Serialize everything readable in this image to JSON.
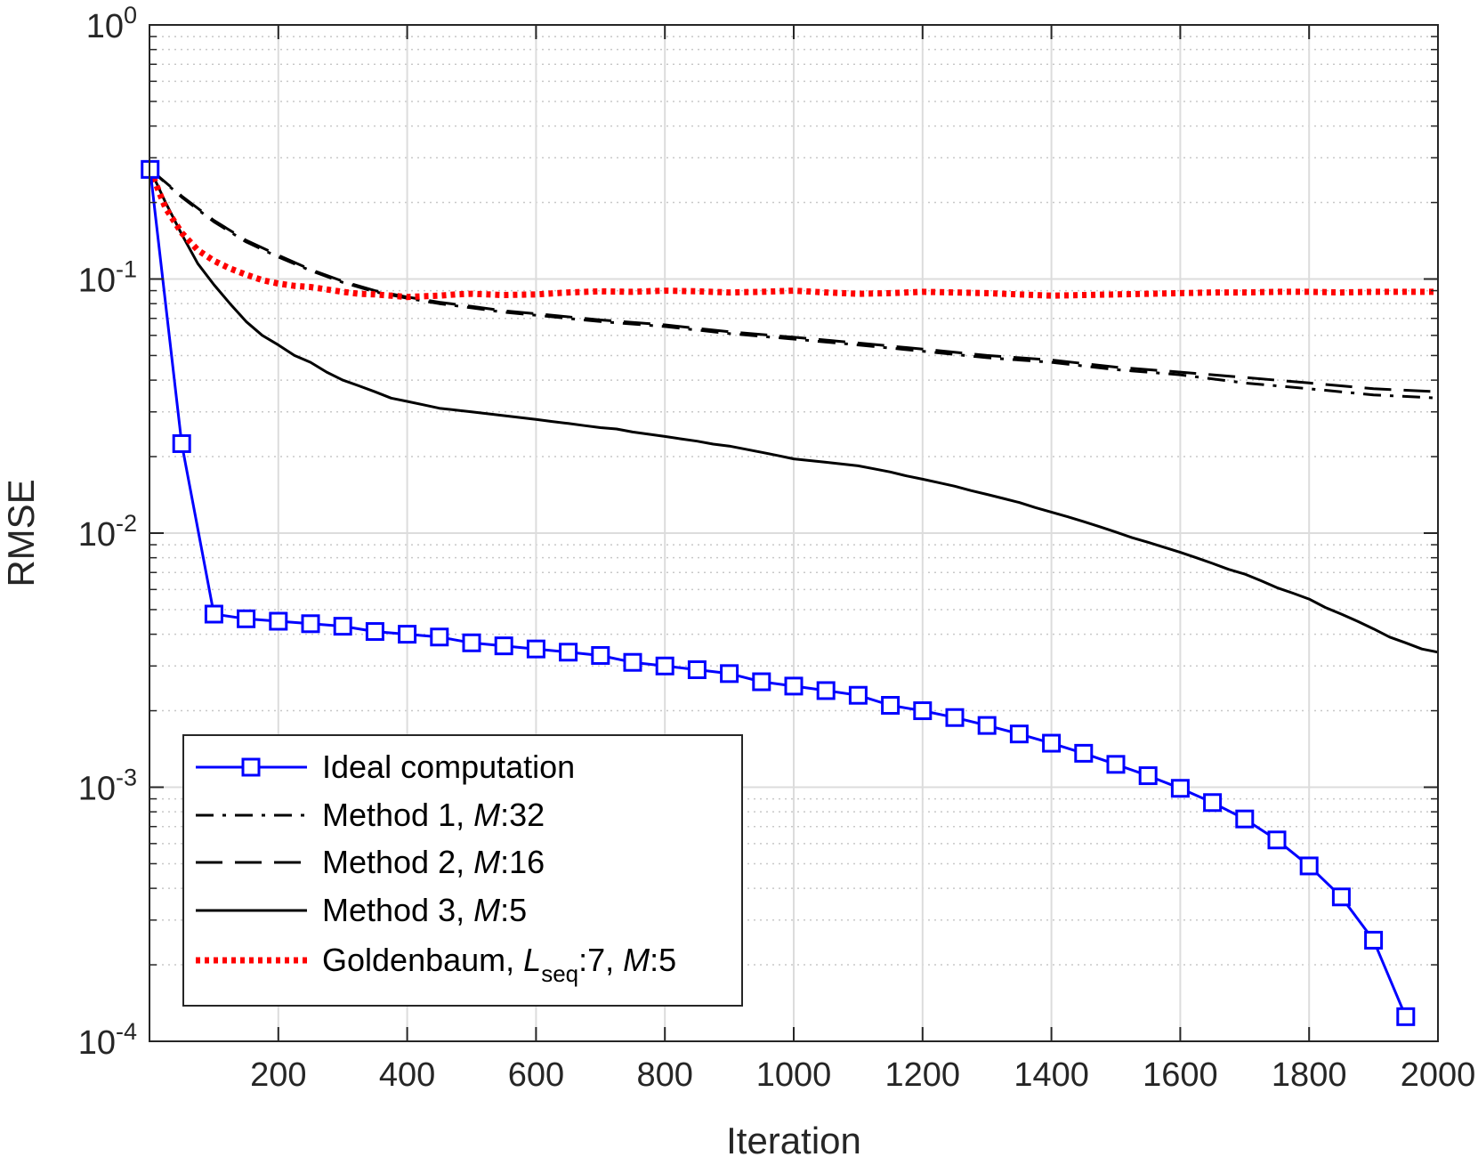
{
  "chart_data": {
    "type": "line",
    "xlabel": "Iteration",
    "ylabel": "RMSE",
    "xlim": [
      0,
      2000
    ],
    "ylim": [
      0.0001,
      1
    ],
    "yscale": "log",
    "grid": true,
    "minor_grid": true,
    "legend_location": "bottom-left",
    "x_ticks": [
      200,
      400,
      600,
      800,
      1000,
      1200,
      1400,
      1600,
      1800,
      2000
    ],
    "x_tick_labels": [
      "200",
      "400",
      "600",
      "800",
      "1000",
      "1200",
      "1400",
      "1600",
      "1800",
      "2000"
    ],
    "y_ticks": [
      {
        "value": 1,
        "base": "10",
        "exp": "0"
      },
      {
        "value": 0.1,
        "base": "10",
        "exp": "-1"
      },
      {
        "value": 0.01,
        "base": "10",
        "exp": "-2"
      },
      {
        "value": 0.001,
        "base": "10",
        "exp": "-3"
      },
      {
        "value": 0.0001,
        "base": "10",
        "exp": "-4"
      }
    ],
    "series": [
      {
        "name": "Ideal computation",
        "color": "#0000ff",
        "style": "solid",
        "marker": "square",
        "x": [
          1,
          50,
          100,
          150,
          200,
          250,
          300,
          350,
          400,
          450,
          500,
          550,
          600,
          650,
          700,
          750,
          800,
          850,
          900,
          950,
          1000,
          1050,
          1100,
          1150,
          1200,
          1250,
          1300,
          1350,
          1400,
          1450,
          1500,
          1550,
          1600,
          1650,
          1700,
          1750,
          1800,
          1850,
          1900,
          1950
        ],
        "y": [
          0.27,
          0.0225,
          0.0048,
          0.0046,
          0.0045,
          0.0044,
          0.0043,
          0.0041,
          0.004,
          0.0039,
          0.0037,
          0.0036,
          0.0035,
          0.0034,
          0.0033,
          0.0031,
          0.003,
          0.0029,
          0.0028,
          0.0026,
          0.0025,
          0.0024,
          0.0023,
          0.0021,
          0.002,
          0.00188,
          0.00175,
          0.00162,
          0.00149,
          0.00136,
          0.00123,
          0.00111,
          0.00099,
          0.00087,
          0.00075,
          0.00062,
          0.00049,
          0.00037,
          0.00025,
          0.000125
        ]
      },
      {
        "name": "Method 1, M:32",
        "label_parts": [
          "Method 1, ",
          "M",
          ":32"
        ],
        "color": "#000000",
        "style": "dashdot",
        "x": [
          1,
          50,
          100,
          150,
          200,
          250,
          300,
          350,
          400,
          450,
          500,
          550,
          600,
          700,
          800,
          900,
          1000,
          1100,
          1200,
          1300,
          1400,
          1500,
          1600,
          1700,
          1800,
          1900,
          2000
        ],
        "y": [
          0.27,
          0.21,
          0.168,
          0.14,
          0.122,
          0.108,
          0.097,
          0.089,
          0.084,
          0.08,
          0.077,
          0.074,
          0.072,
          0.068,
          0.065,
          0.061,
          0.058,
          0.055,
          0.052,
          0.049,
          0.047,
          0.044,
          0.042,
          0.039,
          0.037,
          0.035,
          0.034
        ]
      },
      {
        "name": "Method 2, M:16",
        "label_parts": [
          "Method 2, ",
          "M",
          ":16"
        ],
        "color": "#000000",
        "style": "dashed",
        "x": [
          1,
          50,
          100,
          150,
          200,
          250,
          300,
          350,
          400,
          450,
          500,
          550,
          600,
          700,
          800,
          900,
          1000,
          1100,
          1200,
          1300,
          1400,
          1500,
          1600,
          1700,
          1800,
          1900,
          2000
        ],
        "y": [
          0.27,
          0.212,
          0.17,
          0.142,
          0.124,
          0.109,
          0.098,
          0.09,
          0.085,
          0.081,
          0.078,
          0.075,
          0.073,
          0.069,
          0.066,
          0.062,
          0.059,
          0.056,
          0.053,
          0.05,
          0.048,
          0.045,
          0.043,
          0.041,
          0.039,
          0.037,
          0.036
        ]
      },
      {
        "name": "Method 3, M:5",
        "label_parts": [
          "Method 3, ",
          "M",
          ":5"
        ],
        "color": "#000000",
        "style": "solid",
        "x": [
          1,
          25,
          50,
          75,
          100,
          125,
          150,
          175,
          200,
          225,
          250,
          275,
          300,
          325,
          350,
          375,
          400,
          425,
          450,
          475,
          500,
          525,
          550,
          575,
          600,
          625,
          650,
          675,
          700,
          725,
          750,
          775,
          800,
          825,
          850,
          875,
          900,
          925,
          950,
          975,
          1000,
          1025,
          1050,
          1075,
          1100,
          1125,
          1150,
          1175,
          1200,
          1225,
          1250,
          1275,
          1300,
          1325,
          1350,
          1375,
          1400,
          1425,
          1450,
          1475,
          1500,
          1525,
          1550,
          1575,
          1600,
          1625,
          1650,
          1675,
          1700,
          1725,
          1750,
          1775,
          1800,
          1825,
          1850,
          1875,
          1900,
          1925,
          1950,
          1975,
          2000
        ],
        "y": [
          0.27,
          0.2,
          0.15,
          0.115,
          0.095,
          0.08,
          0.068,
          0.06,
          0.055,
          0.05,
          0.047,
          0.043,
          0.04,
          0.038,
          0.036,
          0.034,
          0.033,
          0.032,
          0.031,
          0.0305,
          0.03,
          0.0295,
          0.029,
          0.0285,
          0.028,
          0.0275,
          0.027,
          0.0265,
          0.026,
          0.0257,
          0.025,
          0.0245,
          0.024,
          0.0235,
          0.023,
          0.0224,
          0.022,
          0.0214,
          0.0208,
          0.0202,
          0.0196,
          0.0193,
          0.019,
          0.0187,
          0.0184,
          0.0179,
          0.0174,
          0.0168,
          0.0163,
          0.0158,
          0.0153,
          0.0147,
          0.0142,
          0.0137,
          0.0132,
          0.0126,
          0.0121,
          0.0116,
          0.0111,
          0.0106,
          0.0101,
          0.0096,
          0.0092,
          0.0088,
          0.0084,
          0.008,
          0.0076,
          0.0072,
          0.0069,
          0.0065,
          0.0061,
          0.0058,
          0.0055,
          0.0051,
          0.0048,
          0.0045,
          0.0042,
          0.0039,
          0.0037,
          0.0035,
          0.0034
        ]
      },
      {
        "name": "Goldenbaum, Lseq:7, M:5",
        "label_parts": [
          "Goldenbaum, ",
          "L",
          "seq",
          ":7, ",
          "M",
          ":5"
        ],
        "color": "#ff0000",
        "style": "dotted",
        "x": [
          1,
          25,
          50,
          75,
          100,
          125,
          150,
          175,
          200,
          225,
          250,
          275,
          300,
          325,
          350,
          375,
          400,
          425,
          450,
          475,
          500,
          550,
          600,
          650,
          700,
          750,
          800,
          850,
          900,
          950,
          1000,
          1050,
          1100,
          1150,
          1200,
          1250,
          1300,
          1350,
          1400,
          1450,
          1500,
          1550,
          1600,
          1650,
          1700,
          1750,
          1800,
          1850,
          1900,
          1950,
          2000
        ],
        "y": [
          0.27,
          0.19,
          0.152,
          0.13,
          0.118,
          0.11,
          0.104,
          0.099,
          0.096,
          0.094,
          0.093,
          0.091,
          0.089,
          0.0875,
          0.087,
          0.086,
          0.085,
          0.0855,
          0.086,
          0.087,
          0.0875,
          0.0865,
          0.087,
          0.0885,
          0.0895,
          0.089,
          0.09,
          0.0895,
          0.0885,
          0.089,
          0.09,
          0.0885,
          0.0875,
          0.088,
          0.089,
          0.0885,
          0.088,
          0.087,
          0.086,
          0.0865,
          0.087,
          0.0875,
          0.088,
          0.0885,
          0.0885,
          0.089,
          0.089,
          0.0885,
          0.089,
          0.089,
          0.089
        ]
      }
    ]
  }
}
